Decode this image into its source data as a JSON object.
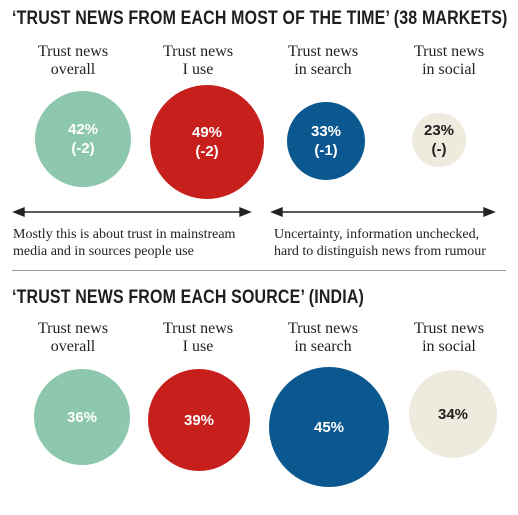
{
  "colors": {
    "mint": "#8dc7ae",
    "red": "#c71f1c",
    "navy": "#0b5890",
    "cream": "#eeeadd",
    "dark_text": "#1e1e1e",
    "light_text": "#ffffff"
  },
  "top": {
    "title": "‘TRUST NEWS FROM EACH MOST OF THE TIME’ (38 MARKETS)",
    "columns": [
      {
        "label_line1": "Trust news",
        "label_line2": "overall",
        "value_text": "42%",
        "change_text": "(-2)"
      },
      {
        "label_line1": "Trust news",
        "label_line2": "I use",
        "value_text": "49%",
        "change_text": "(-2)"
      },
      {
        "label_line1": "Trust news",
        "label_line2": "in search",
        "value_text": "33%",
        "change_text": "(-1)"
      },
      {
        "label_line1": "Trust news",
        "label_line2": "in social",
        "value_text": "23%",
        "change_text": "(-)"
      }
    ],
    "note_left_line1": "Mostly this is about trust in mainstream",
    "note_left_line2": "media and in sources people use",
    "note_right_line1": "Uncertainty, information unchecked,",
    "note_right_line2": "hard to distinguish news from rumour"
  },
  "bottom": {
    "title": "‘TRUST NEWS FROM EACH SOURCE’ (INDIA)",
    "columns": [
      {
        "label_line1": "Trust news",
        "label_line2": "overall",
        "value_text": "36%"
      },
      {
        "label_line1": "Trust news",
        "label_line2": "I use",
        "value_text": "39%"
      },
      {
        "label_line1": "Trust news",
        "label_line2": "in search",
        "value_text": "45%"
      },
      {
        "label_line1": "Trust news",
        "label_line2": "in social",
        "value_text": "34%"
      }
    ]
  },
  "chart_data": [
    {
      "type": "bubble",
      "title": "‘TRUST NEWS FROM EACH MOST OF THE TIME’ (38 MARKETS)",
      "categories": [
        "Trust news overall",
        "Trust news I use",
        "Trust news in search",
        "Trust news in social"
      ],
      "values": [
        42,
        49,
        33,
        23
      ],
      "changes": [
        -2,
        -2,
        -1,
        0
      ],
      "unit": "%"
    },
    {
      "type": "bubble",
      "title": "‘TRUST NEWS FROM EACH SOURCE’ (INDIA)",
      "categories": [
        "Trust news overall",
        "Trust news I use",
        "Trust news in search",
        "Trust news in social"
      ],
      "values": [
        36,
        39,
        45,
        34
      ],
      "unit": "%"
    }
  ]
}
